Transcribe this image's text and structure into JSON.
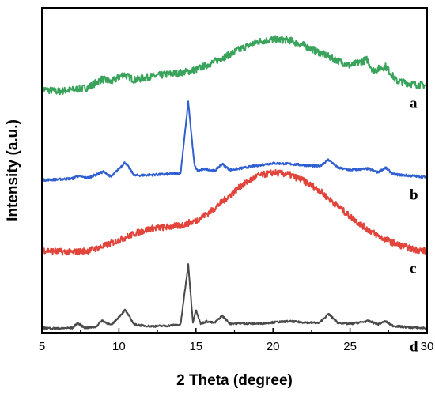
{
  "chart_data": {
    "type": "line",
    "title": "",
    "xlabel": "2 Theta (degree)",
    "ylabel": "Intensity (a.u.)",
    "xlim": [
      5,
      30
    ],
    "xticks": [
      5,
      10,
      15,
      20,
      25,
      30
    ],
    "ylim": [
      0,
      100
    ],
    "y_tick_labels_shown": false,
    "grid": false,
    "legend": "none",
    "series": [
      {
        "name": "a",
        "color": "#3aa35b",
        "x": [
          5,
          6,
          7,
          8,
          8.9,
          9.5,
          10.3,
          11,
          12,
          13,
          14,
          15,
          16,
          17,
          18,
          19,
          20,
          21,
          22,
          23,
          24,
          25,
          26.1,
          26.5,
          27.3,
          28,
          29,
          30
        ],
        "y": [
          75.0,
          74.3,
          74.8,
          75.5,
          78.1,
          77.2,
          79.6,
          77.8,
          78.8,
          79.5,
          80.0,
          81.0,
          83.0,
          85.3,
          87.6,
          89.6,
          90.3,
          90.1,
          88.5,
          86.3,
          84.2,
          82.2,
          84.1,
          80.7,
          82.0,
          77.6,
          76.6,
          76.1
        ]
      },
      {
        "name": "b",
        "color": "#2f5fd0",
        "x": [
          5,
          6,
          7,
          7.2,
          8,
          9,
          9.5,
          10.4,
          11,
          12,
          13,
          14,
          14.5,
          14.9,
          15.1,
          15.6,
          16.2,
          16.7,
          17.2,
          18,
          19,
          20,
          21,
          22,
          23,
          23.6,
          24.2,
          25,
          26.2,
          26.8,
          27.3,
          27.8,
          28.5,
          29.3,
          30
        ],
        "y": [
          47.0,
          47.2,
          47.5,
          48.2,
          47.7,
          49.6,
          48.0,
          52.5,
          48.4,
          48.6,
          48.8,
          49.1,
          71.0,
          51.5,
          49.8,
          50.5,
          49.8,
          52.0,
          50.1,
          50.7,
          51.5,
          52.2,
          52.0,
          51.6,
          51.2,
          53.3,
          50.8,
          50.1,
          50.5,
          49.4,
          50.8,
          48.8,
          48.5,
          48.2,
          47.9
        ]
      },
      {
        "name": "c",
        "color": "#e0443a",
        "x": [
          5,
          6,
          7,
          8,
          9,
          10,
          11,
          12,
          13,
          14,
          15,
          16,
          17,
          18,
          19,
          20,
          21,
          22,
          23,
          24,
          25,
          26,
          27,
          28,
          29,
          30
        ],
        "y": [
          25.5,
          25.0,
          24.8,
          25.3,
          26.6,
          28.5,
          30.5,
          32.0,
          32.5,
          33.0,
          34.5,
          37.5,
          41.5,
          45.5,
          48.3,
          49.3,
          48.8,
          46.8,
          43.8,
          39.8,
          35.8,
          32.3,
          29.3,
          27.3,
          25.8,
          25.1
        ]
      },
      {
        "name": "d",
        "color": "#4a4a4a",
        "x": [
          5,
          6,
          7,
          7.3,
          7.8,
          8.5,
          8.9,
          9.5,
          10.4,
          11,
          12,
          13,
          14,
          14.5,
          14.8,
          15.0,
          15.3,
          15.7,
          16.2,
          16.7,
          17.2,
          18,
          19,
          20,
          21,
          22,
          23,
          23.6,
          24.2,
          25,
          26.2,
          26.8,
          27.3,
          27.8,
          28.5,
          29.3,
          30
        ],
        "y": [
          1.5,
          1.3,
          1.5,
          3.0,
          1.5,
          1.8,
          3.8,
          2.3,
          7.0,
          2.5,
          2.0,
          2.1,
          2.5,
          21.0,
          3.2,
          7.2,
          2.8,
          3.5,
          3.0,
          5.3,
          2.8,
          2.9,
          2.8,
          3.2,
          3.5,
          3.2,
          3.0,
          5.8,
          3.1,
          2.7,
          3.6,
          2.6,
          3.5,
          2.1,
          1.8,
          1.5,
          1.4
        ]
      }
    ]
  }
}
